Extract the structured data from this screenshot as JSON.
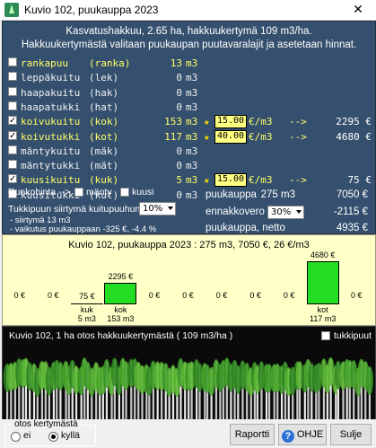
{
  "window": {
    "title": "Kuvio 102,  puukauppa 2023",
    "close": "✕"
  },
  "info": {
    "line1": "Kasvatushakkuu,  2.65 ha,  hakkuukertymä 109 m3/ha.",
    "line2": "Hakkuukertymästä valitaan puukaupan puutavaralajit ja asetetaan hinnat."
  },
  "rows": [
    {
      "checked": false,
      "name": "rankapuu",
      "abbr": "(ranka)",
      "qty": "13",
      "unit": "m3",
      "color": "yellow",
      "price": "",
      "total": ""
    },
    {
      "checked": false,
      "name": "leppäkuitu",
      "abbr": "(lek)",
      "qty": "0",
      "unit": "m3",
      "color": "white",
      "price": "",
      "total": ""
    },
    {
      "checked": false,
      "name": "haapakuitu",
      "abbr": "(hak)",
      "qty": "0",
      "unit": "m3",
      "color": "white",
      "price": "",
      "total": ""
    },
    {
      "checked": false,
      "name": "haapatukki",
      "abbr": "(hat)",
      "qty": "0",
      "unit": "m3",
      "color": "white",
      "price": "",
      "total": ""
    },
    {
      "checked": true,
      "name": "koivukuitu",
      "abbr": "(kok)",
      "qty": "153",
      "unit": "m3",
      "color": "yellow",
      "price": "15.00",
      "price_unit": "€/m3",
      "arrow": "-->",
      "total": "2295 €"
    },
    {
      "checked": true,
      "name": "koivutukki",
      "abbr": "(kot)",
      "qty": "117",
      "unit": "m3",
      "color": "yellow",
      "price": "40.00",
      "price_unit": "€/m3",
      "arrow": "-->",
      "total": "4680 €"
    },
    {
      "checked": false,
      "name": "mäntykuitu",
      "abbr": "(mäk)",
      "qty": "0",
      "unit": "m3",
      "color": "white",
      "price": "",
      "total": ""
    },
    {
      "checked": false,
      "name": "mäntytukki",
      "abbr": "(mät)",
      "qty": "0",
      "unit": "m3",
      "color": "white",
      "price": "",
      "total": ""
    },
    {
      "checked": true,
      "name": "kuusikuitu",
      "abbr": "(kuk)",
      "qty": "5",
      "unit": "m3",
      "color": "yellow",
      "price": "15.00",
      "price_unit": "€/m3",
      "arrow": "-->",
      "total": "75 €"
    },
    {
      "checked": false,
      "name": "kuusitukki",
      "abbr": "(kut)",
      "qty": "0",
      "unit": "m3",
      "color": "white",
      "price": "",
      "total": ""
    }
  ],
  "runkohinta": {
    "label": "Runkohinta -->",
    "opt1": "mänty",
    "opt2": "kuusi"
  },
  "transfer": {
    "label": "Tukkipuun siirtymä kuitupuuhun",
    "value": "10%",
    "line2": "- siirtymä 13 m3",
    "line3": "- vaikutus puukauppaan -325 €, -4.4 %"
  },
  "summary": {
    "puukauppa_label": "puukauppa",
    "puukauppa_qty": "275 m3",
    "puukauppa_val": "7050 €",
    "ennakko_label": "ennakkovero",
    "ennakko_pct": "30%",
    "ennakko_val": "-2115 €",
    "netto_label": "puukauppa, netto",
    "netto_val": "4935 €"
  },
  "chart_data": {
    "type": "bar",
    "title": "Kuvio 102, puukauppa 2023   :   275 m3, 7050 €, 26 €/m3",
    "categories": [
      "",
      "",
      "kuk",
      "kok",
      "",
      "",
      "",
      "",
      "",
      "kot",
      ""
    ],
    "values_eur": [
      0,
      0,
      75,
      2295,
      0,
      0,
      0,
      0,
      0,
      4680,
      0
    ],
    "value_labels": [
      "0 €",
      "0 €",
      "75 €",
      "2295 €",
      "0 €",
      "0 €",
      "0 €",
      "0 €",
      "0 €",
      "4680 €",
      "0 €"
    ],
    "volumes": [
      "",
      "",
      "5 m3",
      "153 m3",
      "",
      "",
      "",
      "",
      "",
      "117 m3",
      ""
    ],
    "ylim": [
      0,
      4680
    ],
    "bar_color": "#22dd22"
  },
  "forest": {
    "title": "Kuvio 102,  1 ha otos hakkuukertymästä  ( 109 m3/ha )",
    "checkbox_label": "tukkipuut"
  },
  "bottom": {
    "group_title": "otos kertymästä",
    "radio_no": "ei",
    "radio_yes": "kyllä",
    "report": "Raportti",
    "help": "OHJE",
    "close": "Sulje"
  }
}
